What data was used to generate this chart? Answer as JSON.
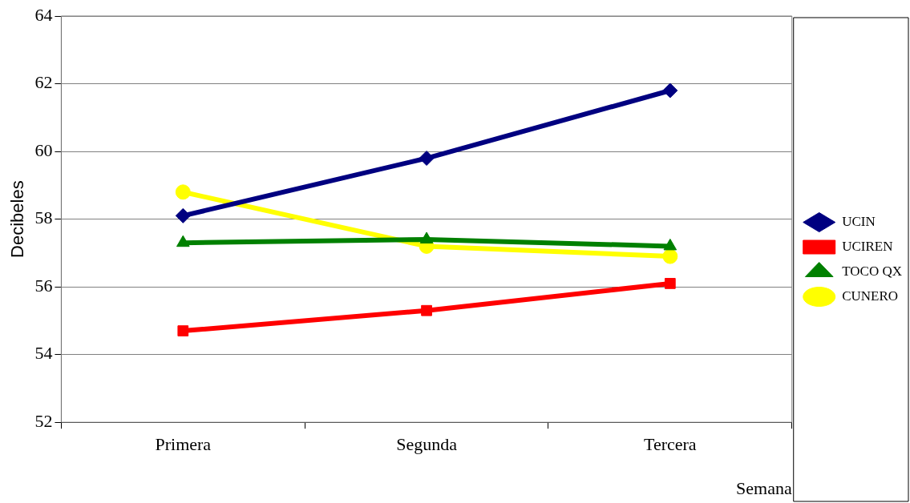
{
  "chart_data": {
    "type": "line",
    "xlabel": "Semana",
    "ylabel": "Decibeles",
    "categories": [
      "Primera",
      "Segunda",
      "Tercera"
    ],
    "series": [
      {
        "name": "UCIN",
        "color": "#000080",
        "marker": "diamond",
        "values": [
          58.1,
          59.8,
          61.8
        ]
      },
      {
        "name": "UCIREN",
        "color": "#ff0000",
        "marker": "square",
        "values": [
          54.7,
          55.3,
          56.1
        ]
      },
      {
        "name": "TOCO QX",
        "color": "#008000",
        "marker": "triangle",
        "values": [
          57.3,
          57.4,
          57.2
        ]
      },
      {
        "name": "CUNERO",
        "color": "#ffff00",
        "marker": "circle",
        "values": [
          58.8,
          57.2,
          56.9
        ]
      }
    ],
    "ylim": [
      52,
      64
    ],
    "yticks": [
      52,
      54,
      56,
      58,
      60,
      62,
      64
    ],
    "grid": "y",
    "legend": "right",
    "line_style": "solid"
  }
}
